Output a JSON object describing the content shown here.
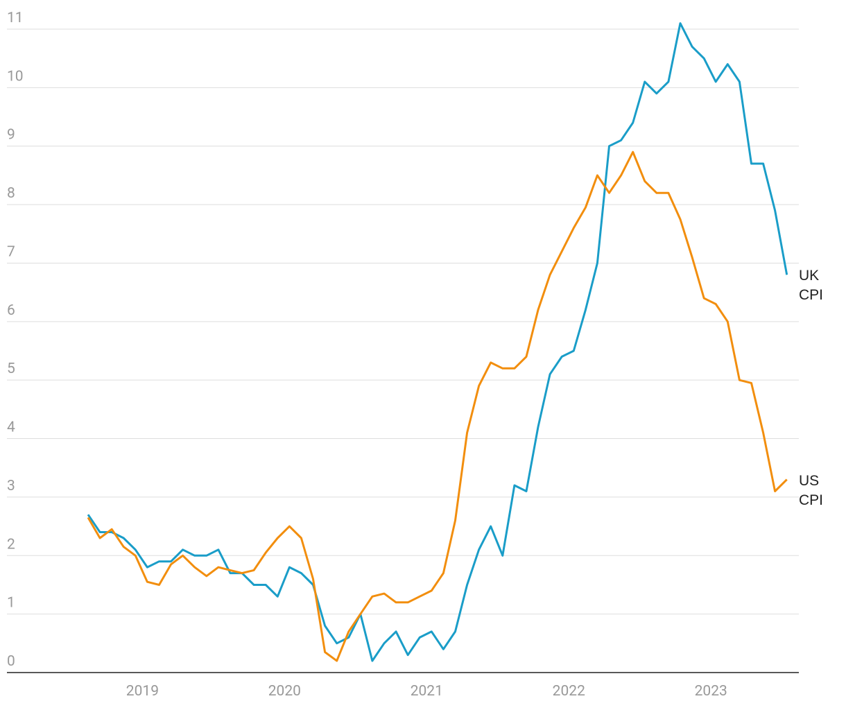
{
  "chart_data": {
    "type": "line",
    "categories": [
      null,
      null,
      null,
      null,
      null,
      "2019",
      null,
      null,
      null,
      null,
      null,
      null,
      null,
      null,
      null,
      null,
      null,
      "2020",
      null,
      null,
      null,
      null,
      null,
      null,
      null,
      null,
      null,
      null,
      null,
      "2021",
      null,
      null,
      null,
      null,
      null,
      null,
      null,
      null,
      null,
      null,
      null,
      "2022",
      null,
      null,
      null,
      null,
      null,
      null,
      null,
      null,
      null,
      null,
      null,
      "2023",
      null,
      null,
      null,
      null,
      null,
      null
    ],
    "series": [
      {
        "name": "UK CPI",
        "color": "#1a9dc8",
        "values": [
          2.7,
          2.4,
          2.4,
          2.3,
          2.1,
          1.8,
          1.9,
          1.9,
          2.1,
          2.0,
          2.0,
          2.1,
          1.7,
          1.7,
          1.5,
          1.5,
          1.3,
          1.8,
          1.7,
          1.5,
          0.8,
          0.5,
          0.6,
          1.0,
          0.2,
          0.5,
          0.7,
          0.3,
          0.6,
          0.7,
          0.4,
          0.7,
          1.5,
          2.1,
          2.5,
          2.0,
          3.2,
          3.1,
          4.2,
          5.1,
          5.4,
          5.5,
          6.2,
          7.0,
          9.0,
          9.1,
          9.4,
          10.1,
          9.9,
          10.1,
          11.1,
          10.7,
          10.5,
          10.1,
          10.4,
          10.1,
          8.7,
          8.7,
          7.9,
          6.8
        ]
      },
      {
        "name": "US CPI",
        "color": "#f28e0e",
        "values": [
          2.65,
          2.3,
          2.45,
          2.15,
          2.0,
          1.55,
          1.5,
          1.85,
          2.0,
          1.8,
          1.65,
          1.8,
          1.75,
          1.7,
          1.75,
          2.05,
          2.3,
          2.5,
          2.3,
          1.6,
          0.35,
          0.2,
          0.7,
          1.0,
          1.3,
          1.35,
          1.2,
          1.2,
          1.3,
          1.4,
          1.7,
          2.6,
          4.1,
          4.9,
          5.3,
          5.2,
          5.2,
          5.4,
          6.2,
          6.8,
          7.2,
          7.6,
          7.95,
          8.5,
          8.2,
          8.5,
          8.9,
          8.4,
          8.2,
          8.2,
          7.75,
          7.1,
          6.4,
          6.3,
          6.0,
          5.0,
          4.95,
          4.1,
          3.1,
          3.3
        ]
      }
    ],
    "ylim": [
      0,
      11
    ],
    "yticks": [
      0,
      1,
      2,
      3,
      4,
      5,
      6,
      7,
      8,
      9,
      10,
      11
    ],
    "grid": true
  }
}
